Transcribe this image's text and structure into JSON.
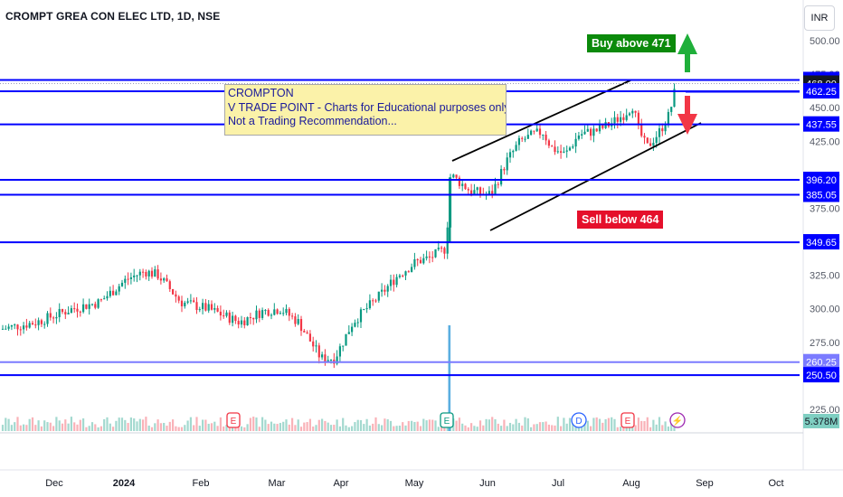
{
  "header": {
    "symbol_line": "CROMPT GREA CON ELEC LTD, 1D, NSE",
    "currency_button": "INR"
  },
  "annotation_note": {
    "lines": [
      "CROMPTON",
      "V TRADE POINT - Charts for Educational purposes only.",
      "Not a Trading Recommendation..."
    ]
  },
  "signals": {
    "buy_label": "Buy above 471",
    "sell_label": "Sell below 464"
  },
  "chart_data": {
    "type": "candlestick",
    "title": "CROMPT GREA CON ELEC LTD, 1D, NSE",
    "y_axis": {
      "range": [
        219,
        509
      ],
      "tick_labels": [
        "500.00",
        "475.00",
        "450.00",
        "425.00",
        "400.00",
        "375.00",
        "350.00",
        "325.00",
        "300.00",
        "275.00",
        "250.00",
        "225.00"
      ]
    },
    "x_axis": {
      "tick_labels": [
        "Dec",
        "2024",
        "Feb",
        "Mar",
        "Apr",
        "May",
        "Jun",
        "Jul",
        "Aug",
        "Sep",
        "Oct"
      ]
    },
    "horizontal_levels": [
      {
        "label": "470.70",
        "value": 470.7,
        "color": "#0000ff"
      },
      {
        "label": "468.00",
        "value": 468.0,
        "color": "#2b2b80",
        "current_price": true
      },
      {
        "label": "462.25",
        "value": 462.25,
        "color": "#0000ff"
      },
      {
        "label": "437.55",
        "value": 437.55,
        "color": "#0000ff"
      },
      {
        "label": "396.20",
        "value": 396.2,
        "color": "#0000ff"
      },
      {
        "label": "385.05",
        "value": 385.05,
        "color": "#0000ff"
      },
      {
        "label": "349.65",
        "value": 349.65,
        "color": "#0000ff"
      },
      {
        "label": "260.25",
        "value": 260.25,
        "color": "#7b7bff"
      },
      {
        "label": "250.50",
        "value": 250.5,
        "color": "#0000ff"
      }
    ],
    "volume_label": "5.378M",
    "channel": {
      "type": "ascending parallel channel",
      "period": "mid-May to Aug 2024"
    },
    "event_markers": [
      "E",
      "E",
      "D",
      "E",
      "dividend-bolt"
    ],
    "signal_arrows": [
      {
        "direction": "up",
        "color": "#1faf3a",
        "meaning": "Buy above 471"
      },
      {
        "direction": "down",
        "color": "#f23645",
        "meaning": "Sell below 464"
      }
    ],
    "colors": {
      "up": "#089981",
      "down": "#f23645",
      "lines": "#0000ff",
      "volume_up": "#a3d9cf",
      "volume_down": "#f9b2b8"
    },
    "grid": false
  }
}
